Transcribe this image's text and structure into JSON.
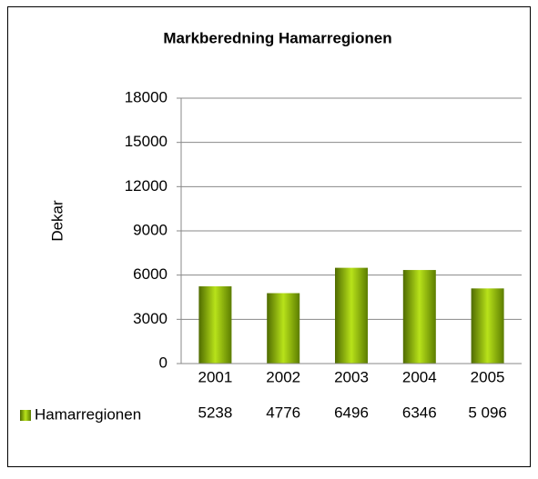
{
  "chart_data": {
    "type": "bar",
    "title": "Markberedning Hamarregionen",
    "y_label": "Dekar",
    "categories": [
      "2001",
      "2002",
      "2003",
      "2004",
      "2005"
    ],
    "series": [
      {
        "name": "Hamarregionen",
        "color": "#8db600",
        "values": [
          5238,
          4776,
          6496,
          6346,
          5096
        ],
        "value_labels": [
          "5238",
          "4776",
          "6496",
          "6346",
          "5 096"
        ]
      }
    ],
    "ylim": [
      0,
      18000
    ],
    "yticks": [
      0,
      3000,
      6000,
      9000,
      12000,
      15000,
      18000
    ],
    "grid": true
  }
}
